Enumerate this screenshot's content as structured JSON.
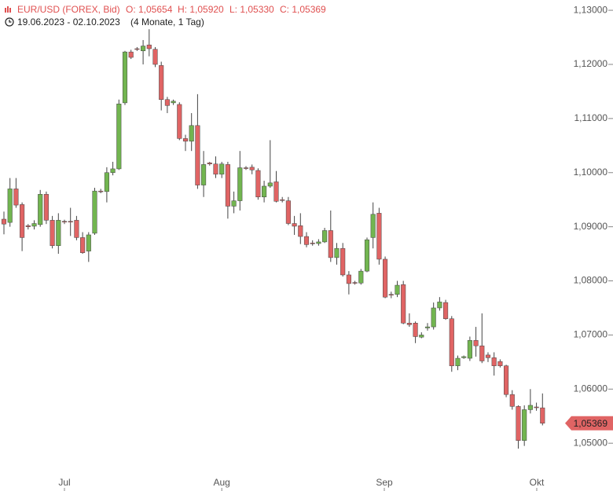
{
  "header": {
    "symbol": "EUR/USD (FOREX, Bid)",
    "open": "O: 1,05654",
    "high": "H: 1,05920",
    "low": "L: 1,05330",
    "close": "C: 1,05369",
    "range": "19.06.2023 - 02.10.2023",
    "span": "(4 Monate, 1 Tag)"
  },
  "chart_data": {
    "type": "candlestick",
    "up_color": "#72b550",
    "down_color": "#e06464",
    "open": [
      1.0914,
      1.0908,
      1.097,
      1.0941,
      1.0902,
      1.0901,
      1.0904,
      1.096,
      1.0912,
      1.0865,
      1.091,
      1.091,
      1.0912,
      1.088,
      1.0855,
      1.0888,
      1.0966,
      1.0965,
      1.1,
      1.1007,
      1.1129,
      1.1223,
      1.1229,
      1.1225,
      1.1236,
      1.1228,
      1.1198,
      1.1135,
      1.1129,
      1.1126,
      1.1063,
      1.1058,
      1.1087,
      1.0977,
      1.1018,
      1.1016,
      1.0997,
      1.1015,
      1.0938,
      1.0948,
      1.1009,
      1.101,
      1.1004,
      1.0955,
      1.0975,
      1.0983,
      1.095,
      1.0948,
      1.0906,
      1.0902,
      1.0882,
      1.087,
      1.0869,
      1.0872,
      1.0893,
      1.0843,
      1.086,
      1.0811,
      1.0797,
      1.0796,
      1.0818,
      1.088,
      1.0925,
      1.084,
      1.0775,
      1.0775,
      1.0793,
      1.0722,
      1.0722,
      1.0696,
      1.0713,
      1.0715,
      1.075,
      1.076,
      1.073,
      1.0643,
      1.0658,
      1.0657,
      1.069,
      1.068,
      1.0663,
      1.0658,
      1.0651,
      1.0643,
      1.059,
      1.0568,
      1.0505,
      1.0562,
      1.0567,
      1.05654
    ],
    "high": [
      1.0928,
      1.099,
      1.099,
      1.0945,
      1.0905,
      1.0912,
      1.0968,
      1.0965,
      1.092,
      1.0925,
      1.0913,
      1.0935,
      1.092,
      1.089,
      1.089,
      1.0972,
      1.097,
      1.101,
      1.102,
      1.1135,
      1.1225,
      1.1227,
      1.1232,
      1.1245,
      1.1265,
      1.1232,
      1.1205,
      1.114,
      1.1135,
      1.113,
      1.107,
      1.111,
      1.1145,
      1.104,
      1.102,
      1.103,
      1.102,
      1.102,
      1.0965,
      1.104,
      1.1012,
      1.1015,
      1.1008,
      1.0985,
      1.106,
      1.1003,
      1.0955,
      1.0955,
      1.092,
      1.0925,
      1.089,
      1.0875,
      1.0877,
      1.0898,
      1.093,
      1.087,
      1.087,
      1.0818,
      1.08,
      1.0822,
      1.088,
      1.0945,
      1.0935,
      1.0845,
      1.078,
      1.08,
      1.08,
      1.074,
      1.0725,
      1.0705,
      1.0722,
      1.076,
      1.077,
      1.0765,
      1.0735,
      1.0662,
      1.0662,
      1.0697,
      1.0715,
      1.074,
      1.0668,
      1.0668,
      1.0655,
      1.0645,
      1.0598,
      1.057,
      1.057,
      1.06,
      1.0575,
      1.0592
    ],
    "low": [
      1.0886,
      1.09,
      1.0935,
      1.0855,
      1.0895,
      1.0895,
      1.09,
      1.0905,
      1.086,
      1.085,
      1.0905,
      1.0883,
      1.0875,
      1.085,
      1.0835,
      1.0885,
      1.0962,
      1.0945,
      1.0995,
      1.1005,
      1.1125,
      1.121,
      1.1225,
      1.12,
      1.1215,
      1.1195,
      1.1115,
      1.111,
      1.1125,
      1.106,
      1.104,
      1.104,
      1.097,
      1.0955,
      1.1013,
      1.099,
      1.099,
      1.0915,
      1.0925,
      1.093,
      1.1005,
      1.0997,
      1.095,
      1.0945,
      1.0972,
      1.0945,
      1.0945,
      1.0903,
      1.0885,
      1.0868,
      1.0862,
      1.0865,
      1.0865,
      1.087,
      1.0835,
      1.083,
      1.0808,
      1.0775,
      1.0793,
      1.0793,
      1.0816,
      1.086,
      1.083,
      1.0768,
      1.0768,
      1.077,
      1.072,
      1.0715,
      1.0685,
      1.0694,
      1.0708,
      1.071,
      1.0745,
      1.0728,
      1.0632,
      1.0635,
      1.0656,
      1.0652,
      1.066,
      1.0648,
      1.065,
      1.0625,
      1.064,
      1.0585,
      1.0562,
      1.049,
      1.0495,
      1.0555,
      1.056,
      1.0533
    ],
    "close": [
      1.0905,
      1.097,
      1.094,
      1.088,
      1.09,
      1.0906,
      1.096,
      1.0912,
      1.0865,
      1.0912,
      1.0909,
      1.0909,
      1.088,
      1.0852,
      1.0885,
      1.0966,
      1.0965,
      1.1,
      1.1007,
      1.1127,
      1.1223,
      1.1213,
      1.1228,
      1.1234,
      1.1229,
      1.12,
      1.1135,
      1.1124,
      1.1132,
      1.1063,
      1.1058,
      1.1087,
      1.0977,
      1.1015,
      1.1016,
      1.0997,
      1.1016,
      1.0938,
      1.0948,
      1.1009,
      1.1008,
      1.1005,
      1.0955,
      1.0975,
      1.0981,
      1.0947,
      1.0949,
      1.0906,
      1.0901,
      1.0882,
      1.0867,
      1.0869,
      1.0872,
      1.0893,
      1.0843,
      1.086,
      1.0811,
      1.0795,
      1.0796,
      1.0818,
      1.0876,
      1.0923,
      1.084,
      1.077,
      1.0774,
      1.0792,
      1.0722,
      1.0719,
      1.0697,
      1.07,
      1.0715,
      1.075,
      1.0761,
      1.073,
      1.0643,
      1.0657,
      1.066,
      1.069,
      1.068,
      1.0652,
      1.0658,
      1.0643,
      1.0643,
      1.059,
      1.0568,
      1.0505,
      1.0562,
      1.057,
      1.0566,
      1.05369
    ],
    "last_value_label": "1,05369",
    "ylim": [
      1.0448,
      1.1319
    ],
    "yticks": [
      {
        "value": 1.13,
        "label": "1,13000"
      },
      {
        "value": 1.12,
        "label": "1,12000"
      },
      {
        "value": 1.11,
        "label": "1,11000"
      },
      {
        "value": 1.1,
        "label": "1,10000"
      },
      {
        "value": 1.09,
        "label": "1,09000"
      },
      {
        "value": 1.08,
        "label": "1,08000"
      },
      {
        "value": 1.07,
        "label": "1,07000"
      },
      {
        "value": 1.06,
        "label": "1,06000"
      },
      {
        "value": 1.05,
        "label": "1,05000"
      }
    ],
    "xlim": [
      -0.65,
      92.86
    ],
    "xticks": [
      {
        "value": 10,
        "label": "Jul"
      },
      {
        "value": 36,
        "label": "Aug"
      },
      {
        "value": 62.86,
        "label": "Sep"
      },
      {
        "value": 88.05,
        "label": "Okt"
      }
    ]
  }
}
